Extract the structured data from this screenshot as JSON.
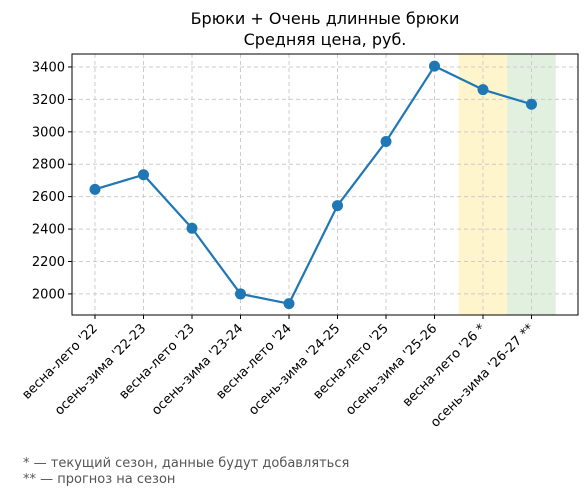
{
  "chart_data": {
    "type": "line",
    "title": "Брюки + Очень длинные брюки",
    "subtitle": "Средняя цена, руб.",
    "xlabel": "",
    "ylabel": "",
    "categories": [
      "весна-лето '22",
      "осень-зима '22-23",
      "весна-лето '23",
      "осень-зима '23-24",
      "весна-лето '24",
      "осень-зима '24-25",
      "весна-лето '25",
      "осень-зима '25-26",
      "весна-лето '26 *",
      "осень-зима '26-27 **"
    ],
    "values": [
      2645,
      2735,
      2405,
      2000,
      1940,
      2545,
      2940,
      3405,
      3260,
      3170
    ],
    "ylim": [
      1870,
      3480
    ],
    "yticks": [
      2000,
      2200,
      2400,
      2600,
      2800,
      3000,
      3200,
      3400
    ],
    "grid": true,
    "line_color": "#1f77b4",
    "highlights": [
      {
        "category_index": 8,
        "color": "#fff5cc",
        "meaning": "current season"
      },
      {
        "category_index": 9,
        "color": "#e2f0e0",
        "meaning": "forecast"
      }
    ]
  },
  "notes": {
    "current_season": "* — текущий сезон, данные будут добавляться",
    "forecast": "** — прогноз на сезон"
  }
}
